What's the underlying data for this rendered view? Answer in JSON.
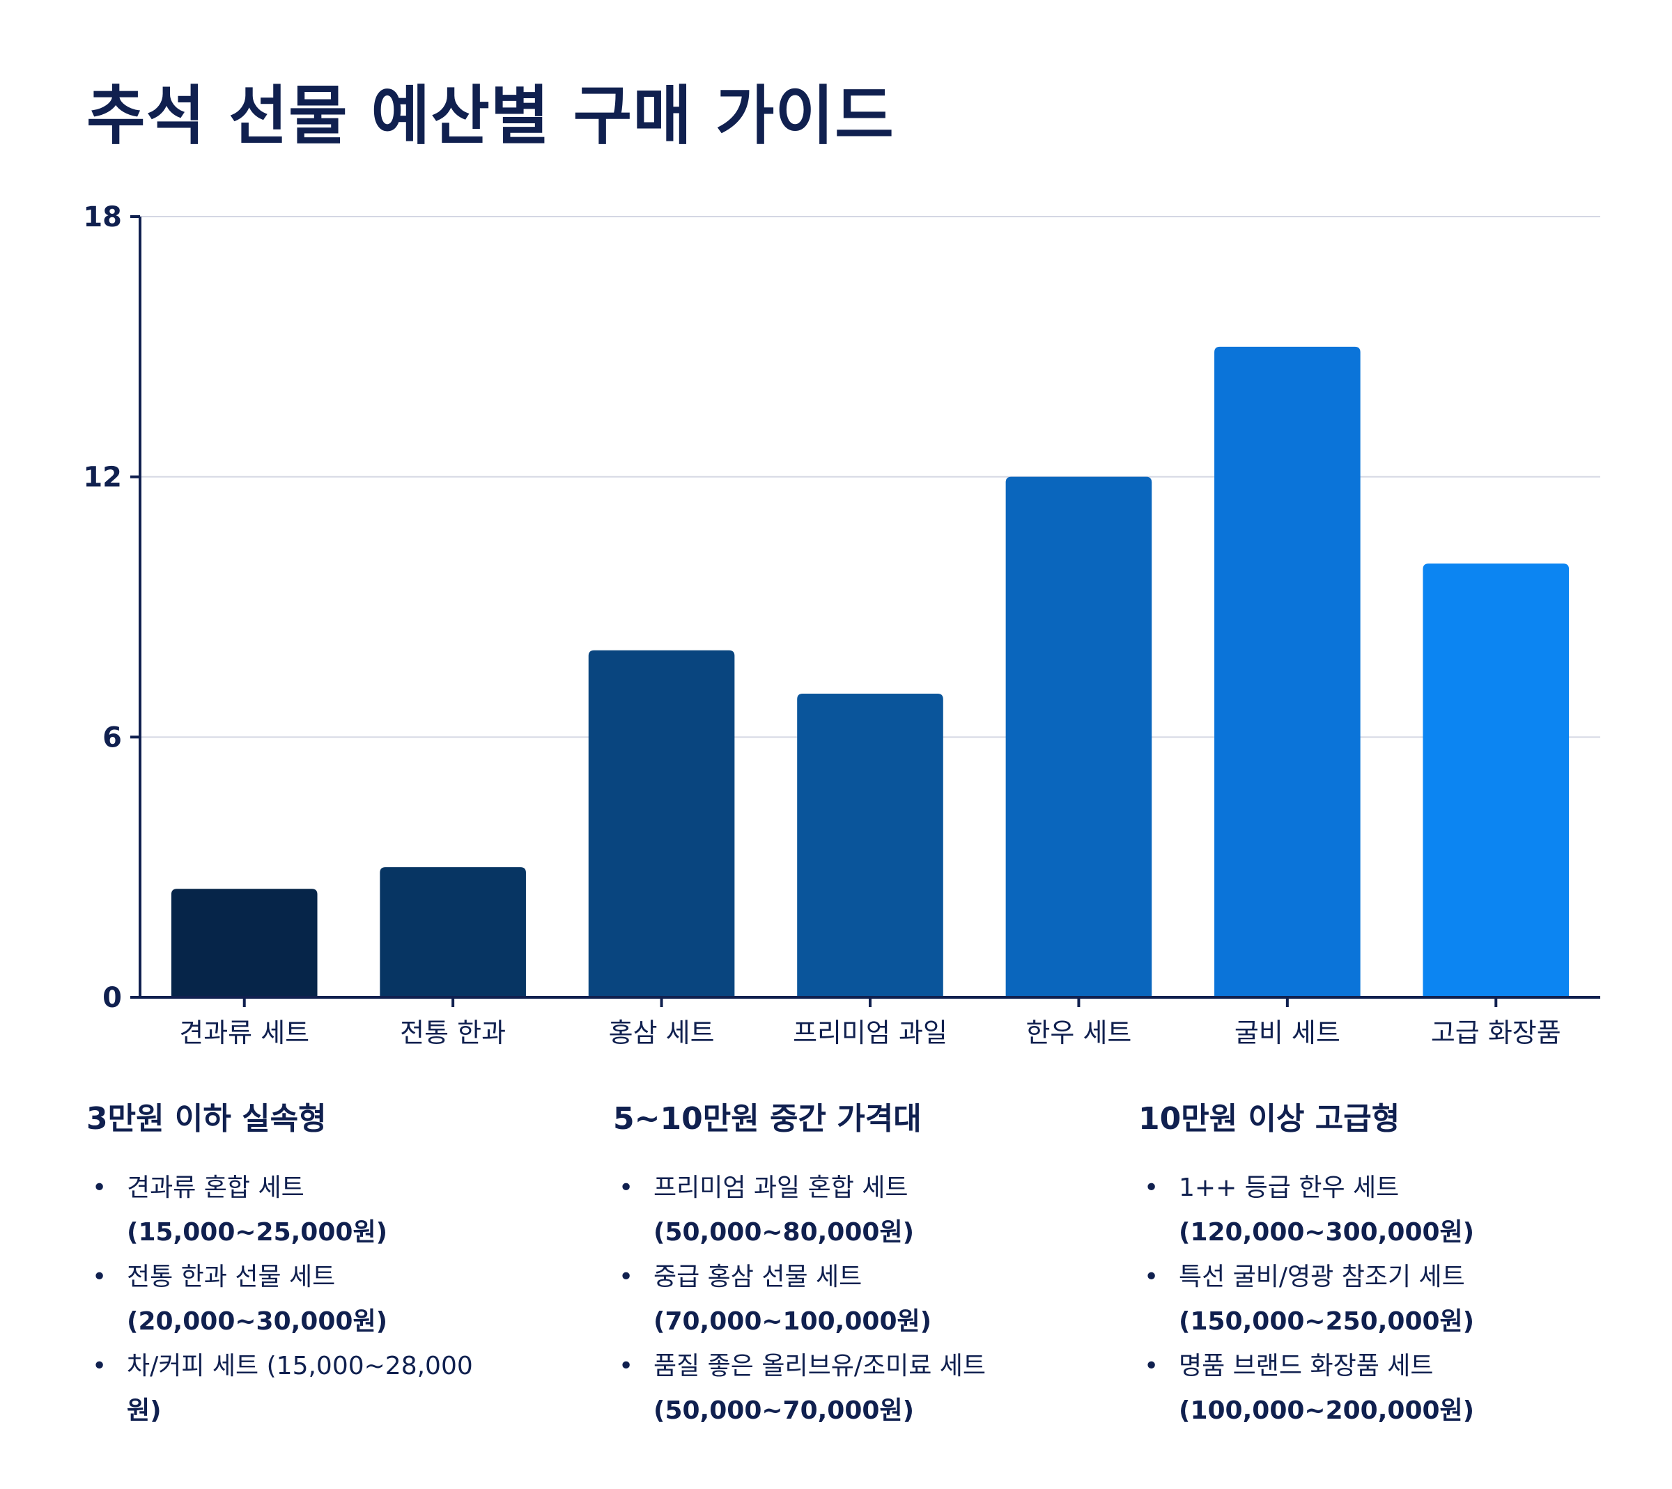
{
  "title": "추석 선물 예산별 구매 가이드",
  "chart_data": {
    "type": "bar",
    "title": "추석 선물 예산별 구매 가이드",
    "xlabel": "",
    "ylabel": "",
    "ylim": [
      0,
      18
    ],
    "yticks": [
      0,
      6,
      12,
      18
    ],
    "grid": true,
    "categories": [
      "견과류 세트",
      "전통 한과",
      "홍삼 세트",
      "프리미엄 과일",
      "한우 세트",
      "굴비 세트",
      "고급 화장품"
    ],
    "values": [
      2.5,
      3,
      8,
      7,
      12,
      15,
      10
    ],
    "colors": [
      "#062549",
      "#073563",
      "#09457f",
      "#0a559b",
      "#0a66bd",
      "#0b74d9",
      "#0c85f2"
    ]
  },
  "columns": [
    {
      "heading": "3만원 이하 실속형",
      "items": [
        {
          "name": "견과류 혼합 세트",
          "price": "(15,000~25,000원)"
        },
        {
          "name": "전통 한과 선물 세트",
          "price": "(20,000~30,000원)"
        },
        {
          "name": "차/커피 세트 (15,000~28,000",
          "price": "원)"
        }
      ]
    },
    {
      "heading": "5~10만원 중간 가격대",
      "items": [
        {
          "name": "프리미엄 과일 혼합 세트",
          "price": "(50,000~80,000원)"
        },
        {
          "name": "중급 홍삼 선물 세트",
          "price": "(70,000~100,000원)"
        },
        {
          "name": "품질 좋은 올리브유/조미료 세트",
          "price": "(50,000~70,000원)"
        }
      ]
    },
    {
      "heading": "10만원 이상 고급형",
      "items": [
        {
          "name": "1++ 등급 한우 세트",
          "price": "(120,000~300,000원)"
        },
        {
          "name": "특선 굴비/영광 참조기 세트",
          "price": "(150,000~250,000원)"
        },
        {
          "name": "명품 브랜드 화장품 세트",
          "price": "(100,000~200,000원)"
        }
      ]
    }
  ]
}
